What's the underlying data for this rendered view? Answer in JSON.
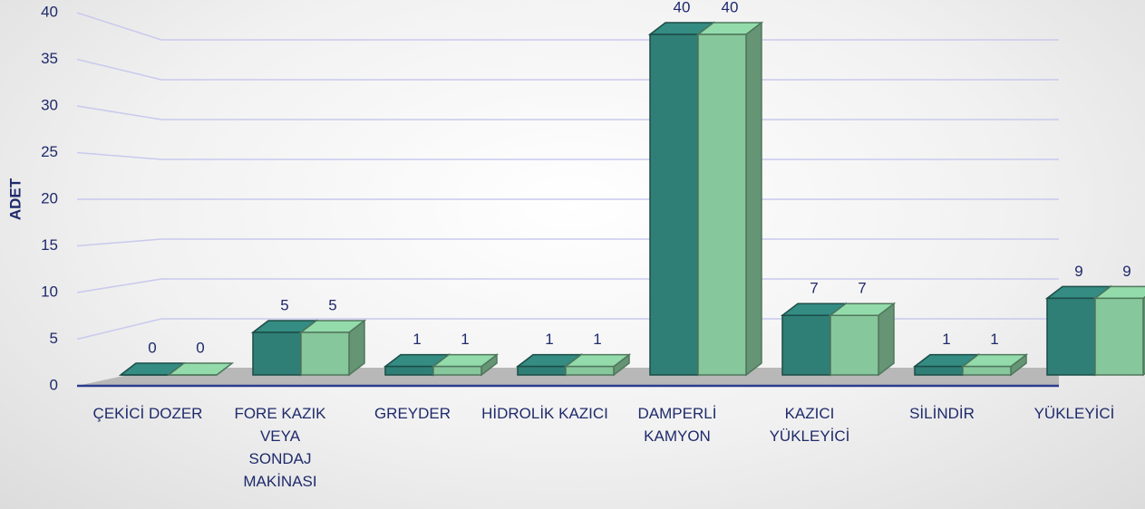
{
  "chart_data": {
    "type": "bar3d",
    "y_label": "ADET",
    "categories": [
      "ÇEKİCİ DOZER",
      "FORE KAZIK VEYA SONDAJ MAKİNASI",
      "GREYDER",
      "HİDROLİK KAZICI",
      "DAMPERLİ KAMYON",
      "KAZICI YÜKLEYİCİ",
      "SİLİNDİR",
      "YÜKLEYİCİ"
    ],
    "series": [
      {
        "color": "#2f7f77",
        "values": [
          0,
          5,
          1,
          1,
          40,
          7,
          1,
          9
        ]
      },
      {
        "color": "#86c79b",
        "values": [
          0,
          5,
          1,
          1,
          40,
          7,
          1,
          9
        ]
      }
    ],
    "ylim": [
      0,
      40
    ],
    "yticks": [
      0,
      5,
      10,
      15,
      20,
      25,
      30,
      35,
      40
    ],
    "grid": true
  }
}
